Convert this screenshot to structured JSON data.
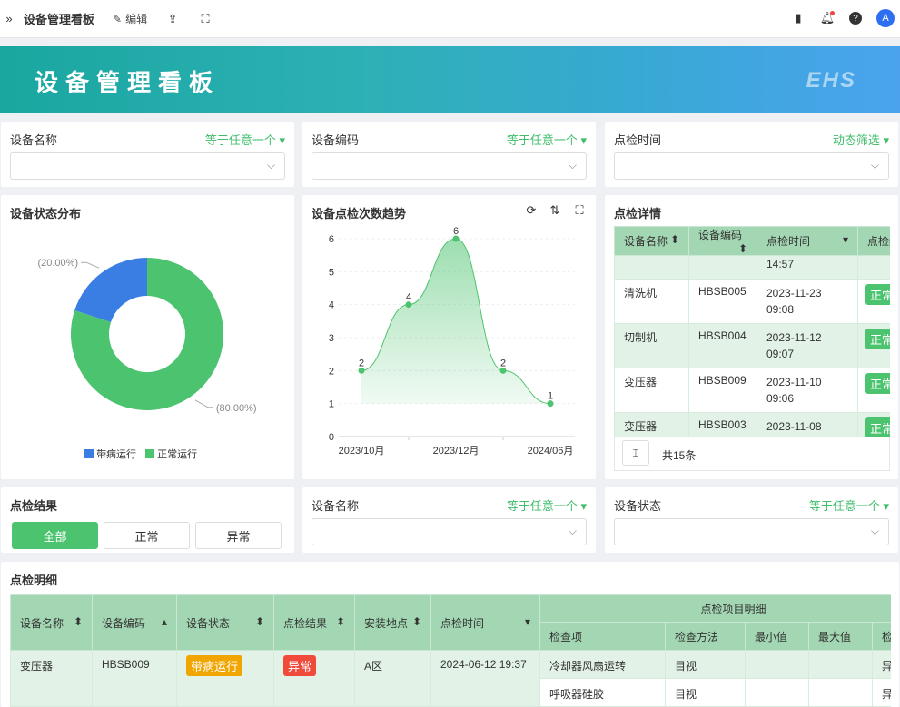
{
  "topbar": {
    "title": "设备管理看板",
    "edit": "编辑",
    "avatar": "A"
  },
  "banner": {
    "title": "设备管理看板",
    "logo": "EHS"
  },
  "filters": [
    {
      "label": "设备名称",
      "op": "等于任意一个"
    },
    {
      "label": "设备编码",
      "op": "等于任意一个"
    },
    {
      "label": "点检时间",
      "op": "动态筛选"
    },
    {
      "label": "设备名称",
      "op": "等于任意一个"
    },
    {
      "label": "设备状态",
      "op": "等于任意一个"
    }
  ],
  "pie": {
    "title": "设备状态分布",
    "legend": [
      "带病运行",
      "正常运行"
    ],
    "chart_data": {
      "type": "pie",
      "donut": true,
      "labels": [
        "带病运行",
        "正常运行"
      ],
      "values": [
        20,
        80
      ],
      "data_labels": [
        "(20.00%)",
        "(80.00%)"
      ],
      "colors": [
        "#3a7ee4",
        "#4cc36e"
      ]
    }
  },
  "line": {
    "title": "设备点检次数趋势",
    "chart_data": {
      "type": "area",
      "categories": [
        "2023/10月",
        "",
        "2023/12月",
        "",
        "2024/06月"
      ],
      "values": [
        2,
        4,
        6,
        2,
        1
      ],
      "ylim": [
        0,
        6
      ],
      "yticks": [
        "0",
        "1",
        "2",
        "3",
        "4",
        "5",
        "6"
      ],
      "color": "#4cc36e",
      "grid": true
    }
  },
  "detail": {
    "title": "点检详情",
    "headers": [
      "设备名称",
      "设备编码",
      "点检时间",
      "点检结"
    ],
    "rows": [
      {
        "name": "",
        "code": "",
        "time1": "",
        "time2": "14:57",
        "res": ""
      },
      {
        "name": "清洗机",
        "code": "HBSB005",
        "time1": "2023-11-23",
        "time2": "09:08",
        "res": "正常"
      },
      {
        "name": "切制机",
        "code": "HBSB004",
        "time1": "2023-11-12",
        "time2": "09:07",
        "res": "正常"
      },
      {
        "name": "变压器",
        "code": "HBSB009",
        "time1": "2023-11-10",
        "time2": "09:06",
        "res": "正常"
      },
      {
        "name": "变压器",
        "code": "HBSB003",
        "time1": "2023-11-08",
        "time2": "",
        "res": "正常"
      }
    ],
    "total": "共15条"
  },
  "result": {
    "title": "点检结果",
    "options": [
      "全部",
      "正常",
      "异常"
    ]
  },
  "list": {
    "title": "点检明细",
    "headers": [
      "设备名称",
      "设备编码",
      "设备状态",
      "点检结果",
      "安装地点",
      "点检时间"
    ],
    "group": "点检项目明细",
    "sub": [
      "检查项",
      "检查方法",
      "最小值",
      "最大值",
      "检查"
    ],
    "row": {
      "name": "变压器",
      "code": "HBSB009",
      "status": "带病运行",
      "result": "异常",
      "place": "A区",
      "time": "2024-06-12 19:37"
    },
    "items": [
      {
        "item": "冷却器风扇运转",
        "method": "目视",
        "res": "异常"
      },
      {
        "item": "呼吸器硅胶",
        "method": "目视",
        "res": "异常"
      }
    ]
  }
}
